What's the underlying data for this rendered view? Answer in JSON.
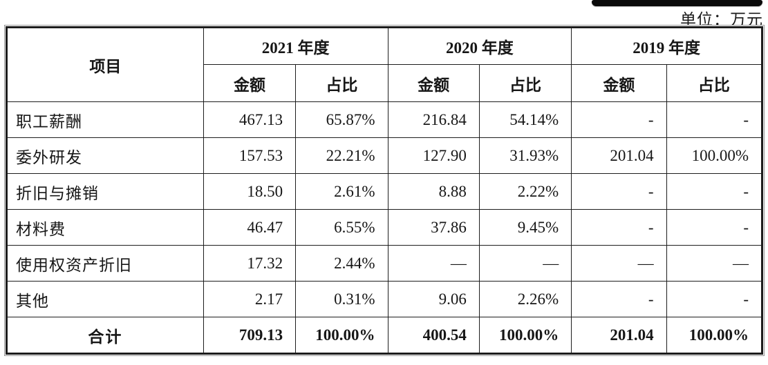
{
  "page": {
    "unit_label": "单位：万元"
  },
  "table": {
    "item_header": "项目",
    "year_headers": [
      "2021 年度",
      "2020 年度",
      "2019 年度"
    ],
    "sub_headers": {
      "amount": "金额",
      "ratio": "占比"
    },
    "rows": [
      {
        "item": "职工薪酬",
        "cells": [
          "467.13",
          "65.87%",
          "216.84",
          "54.14%",
          "-",
          "-"
        ]
      },
      {
        "item": "委外研发",
        "cells": [
          "157.53",
          "22.21%",
          "127.90",
          "31.93%",
          "201.04",
          "100.00%"
        ]
      },
      {
        "item": "折旧与摊销",
        "cells": [
          "18.50",
          "2.61%",
          "8.88",
          "2.22%",
          "-",
          "-"
        ]
      },
      {
        "item": "材料费",
        "cells": [
          "46.47",
          "6.55%",
          "37.86",
          "9.45%",
          "-",
          "-"
        ]
      },
      {
        "item": "使用权资产折旧",
        "cells": [
          "17.32",
          "2.44%",
          "—",
          "—",
          "—",
          "—"
        ]
      },
      {
        "item": "其他",
        "cells": [
          "2.17",
          "0.31%",
          "9.06",
          "2.26%",
          "-",
          "-"
        ]
      }
    ],
    "total_row": {
      "item": "合计",
      "cells": [
        "709.13",
        "100.00%",
        "400.54",
        "100.00%",
        "201.04",
        "100.00%"
      ]
    }
  }
}
